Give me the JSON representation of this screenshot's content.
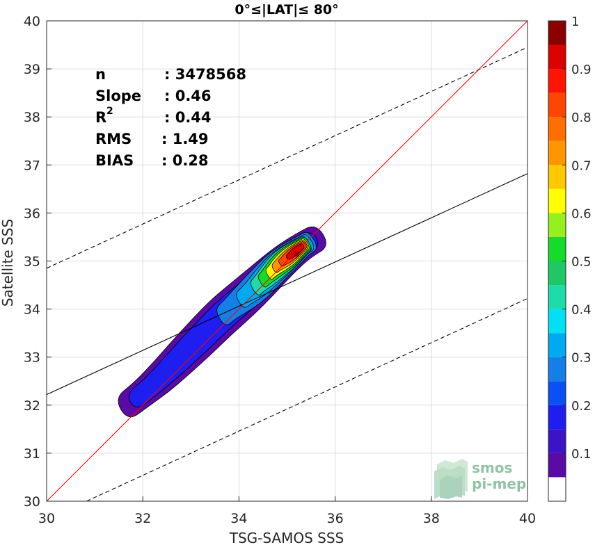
{
  "chart_data": {
    "type": "heatmap",
    "subtype": "normalized density contour scatter",
    "title": "0°≤|LAT|≤ 80°",
    "xlabel": "TSG-SAMOS SSS",
    "ylabel": "Satellite SSS",
    "xlim": [
      30,
      40
    ],
    "ylim": [
      30,
      40
    ],
    "xticks": [
      30,
      32,
      34,
      36,
      38,
      40
    ],
    "yticks": [
      30,
      31,
      32,
      33,
      34,
      35,
      36,
      37,
      38,
      39,
      40
    ],
    "grid": true,
    "stats": [
      {
        "label": "n",
        "sep": ": ",
        "value": "3478568"
      },
      {
        "label": "Slope",
        "sep": ": ",
        "value": "0.46"
      },
      {
        "label": "R",
        "sup": "2",
        "sep": ": ",
        "value": "0.44"
      },
      {
        "label": "RMS",
        "sep": ": ",
        "value": "1.49"
      },
      {
        "label": "BIAS",
        "sep": ": ",
        "value": "0.28"
      }
    ],
    "lines": {
      "identity": {
        "from": [
          30,
          30
        ],
        "to": [
          40,
          40
        ],
        "color": "#ff0000"
      },
      "fit": {
        "from": [
          30,
          32.22
        ],
        "to": [
          40,
          36.82
        ],
        "color": "#000000"
      },
      "upper_bound": {
        "from": [
          30,
          34.85
        ],
        "to": [
          40,
          39.45
        ],
        "color": "#000000",
        "dash": true
      },
      "lower_bound": {
        "from": [
          30.83,
          30
        ],
        "to": [
          40,
          34.22
        ],
        "color": "#000000",
        "dash": true
      }
    },
    "density_ridge": {
      "description": "ridge of the point-density peak along the identity line",
      "x": [
        31.55,
        32.2,
        33.0,
        33.7,
        34.3,
        34.8,
        35.3,
        35.7
      ],
      "y": [
        31.9,
        32.4,
        33.2,
        33.9,
        34.4,
        34.9,
        35.3,
        35.55
      ],
      "peak": {
        "x": 35.2,
        "y": 35.15,
        "value": 1.0
      }
    },
    "colorbar": {
      "range": [
        0,
        1
      ],
      "ticks": [
        "0.1",
        "0.2",
        "0.3",
        "0.4",
        "0.5",
        "0.6",
        "0.7",
        "0.8",
        "0.9",
        "1"
      ],
      "levels": [
        {
          "from": 0.0,
          "to": 0.05,
          "color": "#ffffff"
        },
        {
          "from": 0.05,
          "to": 0.1,
          "color": "#5a0aa5"
        },
        {
          "from": 0.1,
          "to": 0.15,
          "color": "#3c14c8"
        },
        {
          "from": 0.15,
          "to": 0.2,
          "color": "#1e1ef0"
        },
        {
          "from": 0.2,
          "to": 0.25,
          "color": "#0a50f5"
        },
        {
          "from": 0.25,
          "to": 0.3,
          "color": "#147fe6"
        },
        {
          "from": 0.3,
          "to": 0.35,
          "color": "#00aaf0"
        },
        {
          "from": 0.35,
          "to": 0.4,
          "color": "#00e1f5"
        },
        {
          "from": 0.4,
          "to": 0.45,
          "color": "#1edcaa"
        },
        {
          "from": 0.45,
          "to": 0.5,
          "color": "#1ec864"
        },
        {
          "from": 0.5,
          "to": 0.55,
          "color": "#14dc28"
        },
        {
          "from": 0.55,
          "to": 0.6,
          "color": "#96f01e"
        },
        {
          "from": 0.6,
          "to": 0.65,
          "color": "#ffff00"
        },
        {
          "from": 0.65,
          "to": 0.7,
          "color": "#ffc800"
        },
        {
          "from": 0.7,
          "to": 0.75,
          "color": "#ff9600"
        },
        {
          "from": 0.75,
          "to": 0.8,
          "color": "#ff6e00"
        },
        {
          "from": 0.8,
          "to": 0.85,
          "color": "#ff4600"
        },
        {
          "from": 0.85,
          "to": 0.9,
          "color": "#ff1400"
        },
        {
          "from": 0.9,
          "to": 0.95,
          "color": "#dc0000"
        },
        {
          "from": 0.95,
          "to": 1.0,
          "color": "#8c0000"
        }
      ]
    }
  },
  "logo": {
    "line1": "smos",
    "line2": "pi-mep",
    "color": "#8fc3a3"
  }
}
